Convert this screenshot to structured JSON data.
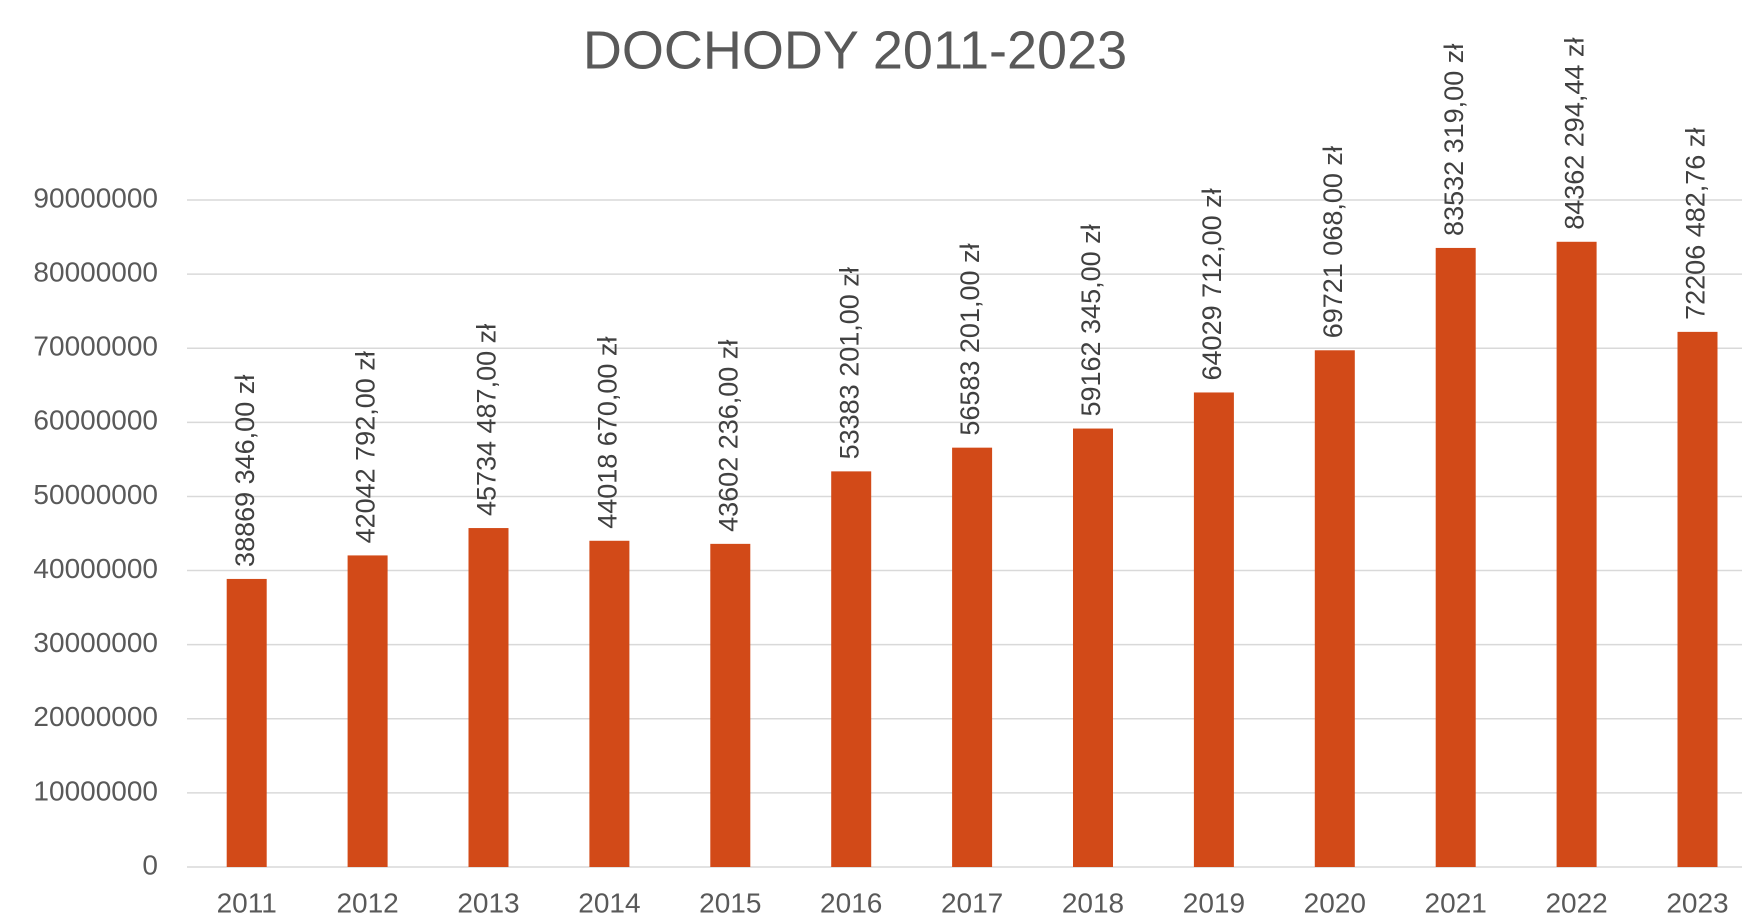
{
  "chart_data": {
    "type": "bar",
    "title": "DOCHODY 2011-2023",
    "categories": [
      "2011",
      "2012",
      "2013",
      "2014",
      "2015",
      "2016",
      "2017",
      "2018",
      "2019",
      "2020",
      "2021",
      "2022",
      "2023"
    ],
    "values": [
      38869346,
      42042792,
      45734487,
      44018670,
      43602236,
      53383201,
      56583201,
      59162345,
      64029712,
      69721068,
      83532319,
      84362294.44,
      72206482.76
    ],
    "value_labels": [
      "38869 346,00 zł",
      "42042 792,00 zł",
      "45734 487,00 zł",
      "44018 670,00 zł",
      "43602 236,00 zł",
      "53383 201,00 zł",
      "56583 201,00 zł",
      "59162 345,00 zł",
      "64029 712,00 zł",
      "69721 068,00 zł",
      "83532 319,00 zł",
      "84362 294,44 zł",
      "72206 482,76 zł"
    ],
    "color": "#d24a18",
    "ylim": [
      0,
      90000000
    ],
    "yticks": [
      0,
      10000000,
      20000000,
      30000000,
      40000000,
      50000000,
      60000000,
      70000000,
      80000000,
      90000000
    ],
    "grid": true
  }
}
